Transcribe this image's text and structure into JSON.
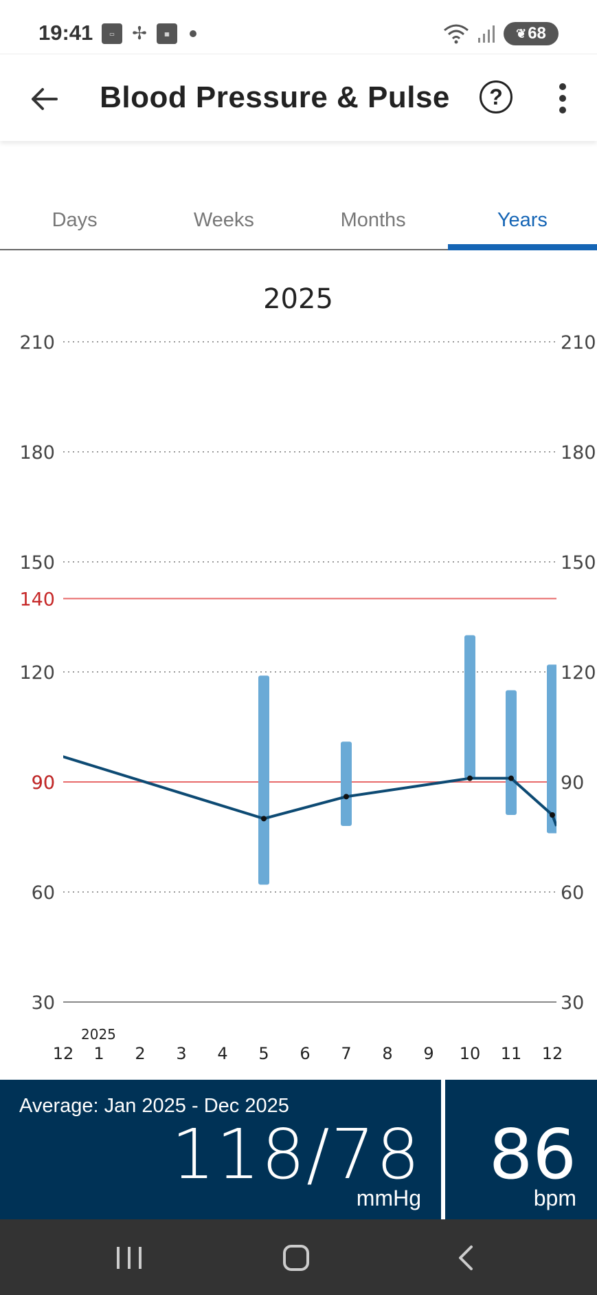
{
  "status_bar": {
    "time": "19:41",
    "notification_icons": [
      "connect-app-icon",
      "fan-icon",
      "uniqlo-icon"
    ],
    "battery": "68"
  },
  "header": {
    "title": "Blood Pressure & Pulse"
  },
  "tabs": [
    {
      "label": "Days",
      "active": false
    },
    {
      "label": "Weeks",
      "active": false
    },
    {
      "label": "Months",
      "active": false
    },
    {
      "label": "Years",
      "active": true
    }
  ],
  "chart_data": {
    "type": "bar",
    "title": "2025",
    "y_ticks": [
      210,
      180,
      150,
      120,
      90,
      60,
      30
    ],
    "ylim": [
      30,
      210
    ],
    "threshold_lines": [
      {
        "value": 140,
        "label": "140",
        "color": "#e86a6a"
      },
      {
        "value": 90,
        "label": "90",
        "color": "#e86a6a"
      }
    ],
    "year_label": "2025",
    "x_tick_labels": [
      "12",
      "1",
      "2",
      "3",
      "4",
      "5",
      "6",
      "7",
      "8",
      "9",
      "10",
      "11",
      "12"
    ],
    "bp_range_series": {
      "color": "#6aaad6",
      "bars": [
        {
          "month": 5,
          "low": 62,
          "high": 119
        },
        {
          "month": 7,
          "low": 78,
          "high": 101
        },
        {
          "month": 10,
          "low": 91,
          "high": 130
        },
        {
          "month": 11,
          "low": 81,
          "high": 115
        },
        {
          "month": 12,
          "low": 76,
          "high": 122
        }
      ]
    },
    "pulse_series": {
      "color": "#0d4a73",
      "points": [
        {
          "month": 0.1,
          "value": 97
        },
        {
          "month": 5,
          "value": 80
        },
        {
          "month": 7,
          "value": 86
        },
        {
          "month": 10,
          "value": 91
        },
        {
          "month": 11,
          "value": 91
        },
        {
          "month": 12,
          "value": 81
        },
        {
          "month": 12.1,
          "value": 78
        }
      ]
    }
  },
  "summary": {
    "period_label": "Average: Jan 2025 - Dec 2025",
    "bp_value": "118/78",
    "bp_unit": "mmHg",
    "pulse_value": "86",
    "pulse_unit": "bpm"
  }
}
